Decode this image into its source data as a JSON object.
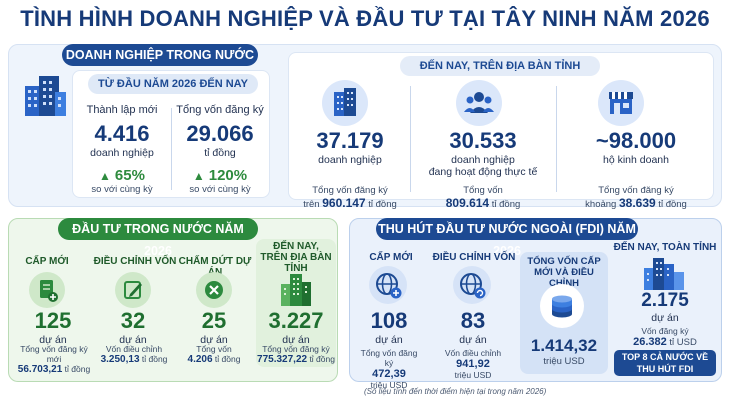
{
  "title": "TÌNH HÌNH DOANH NGHIỆP VÀ ĐẦU TƯ TẠI TÂY NINH NĂM 2026",
  "domestic": {
    "tab": "DOANH NGHIỆP TRONG NƯỚC",
    "ytd": {
      "subtitle": "TỪ ĐẦU NĂM 2026 ĐẾN NAY",
      "new": {
        "label": "Thành lập mới",
        "value": "4.416",
        "unit": "doanh nghiệp",
        "change": "65%",
        "compare": "so với cùng kỳ"
      },
      "capital": {
        "label": "Tổng vốn đăng ký",
        "value": "29.066",
        "unit": "tỉ đồng",
        "change": "120%",
        "compare": "so với cùng kỳ"
      }
    },
    "cumulative": {
      "subtitle": "ĐẾN NAY, TRÊN ĐỊA BÀN TỈNH",
      "items": [
        {
          "value": "37.179",
          "unit": "doanh nghiệp",
          "unit2": "",
          "cap_label": "Tổng vốn đăng ký",
          "cap_prefix": "trên ",
          "cap_value": "960.147",
          "cap_unit": " tỉ đồng"
        },
        {
          "value": "30.533",
          "unit": "doanh nghiệp",
          "unit2": "đang hoạt động thực tế",
          "cap_label": "Tổng vốn",
          "cap_prefix": "",
          "cap_value": "809.614",
          "cap_unit": " tỉ đồng"
        },
        {
          "value": "~98.000",
          "unit": "hộ kinh doanh",
          "unit2": "",
          "cap_label": "Tổng vốn đăng ký",
          "cap_prefix": "khoảng ",
          "cap_value": "38.639",
          "cap_unit": " tỉ đồng"
        }
      ]
    }
  },
  "domestic_investment": {
    "tab": "ĐẦU TƯ TRONG NƯỚC NĂM 2026",
    "new": {
      "title": "CẤP MỚI",
      "value": "125",
      "unit": "dự án",
      "cap_label": "Tổng vốn đăng ký mới",
      "cap_value": "56.703,21",
      "cap_unit": " tỉ đồng"
    },
    "adjust": {
      "title": "ĐIỀU CHỈNH VỐN",
      "value": "32",
      "unit": "dự án",
      "cap_label": "Vốn điều chỉnh",
      "cap_value": "3.250,13",
      "cap_unit": " tỉ đồng"
    },
    "terminate": {
      "title": "CHẤM DỨT DỰ ÁN",
      "value": "25",
      "unit": "dự án",
      "cap_label": "Tổng vốn",
      "cap_value": "4.206",
      "cap_unit": " tỉ đồng"
    },
    "total": {
      "title": "ĐẾN NAY, TRÊN ĐỊA BÀN TỈNH",
      "value": "3.227",
      "unit": "dự án",
      "cap_label": "Tổng vốn đăng ký",
      "cap_value": "775.327,22",
      "cap_unit": " tỉ đồng"
    }
  },
  "fdi": {
    "tab": "THU HÚT ĐẦU TƯ NƯỚC NGOÀI (FDI) NĂM 2026",
    "new": {
      "title": "CẤP MỚI",
      "value": "108",
      "unit": "dự án",
      "cap_label": "Tổng vốn đăng ký",
      "cap_value": "472,39",
      "cap_unit": "triệu USD"
    },
    "adjust": {
      "title": "ĐIỀU CHỈNH VỐN",
      "value": "83",
      "unit": "dự án",
      "cap_label": "Vốn điều chỉnh",
      "cap_value": "941,92",
      "cap_unit": "triệu USD"
    },
    "combined": {
      "title": "TỔNG VỐN CẤP MỚI VÀ ĐIỀU CHỈNH",
      "value": "1.414,32",
      "unit": "triệu USD"
    },
    "total": {
      "title": "ĐẾN NAY, TOÀN TỈNH",
      "value": "2.175",
      "unit": "dự án",
      "cap_label": "Vốn đăng ký",
      "cap_value": "26.382",
      "cap_unit": " tỉ USD",
      "badge": "TOP 8 CẢ NƯỚC VỀ THU HÚT FDI"
    }
  },
  "footer": "(Số liệu tính đến thời điểm hiện tại trong năm 2026)",
  "colors": {
    "navy": "#163a78",
    "green": "#2c8a3e",
    "blue_icon": "#2a63c6"
  },
  "icons": [
    "buildings-icon",
    "office-building-icon",
    "people-icon",
    "shop-icon",
    "document-plus-icon",
    "edit-icon",
    "cancel-icon",
    "city-icon",
    "globe-plus-icon",
    "globe-refresh-icon",
    "coins-icon",
    "skyline-icon",
    "arrow-up-icon"
  ]
}
